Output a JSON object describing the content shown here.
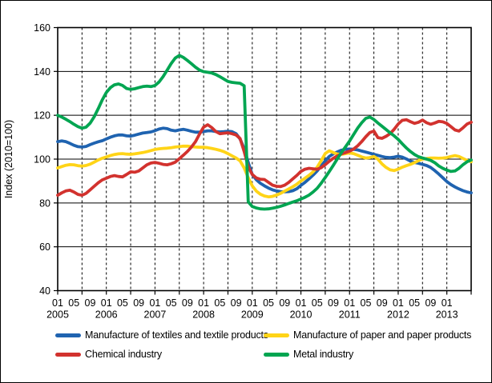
{
  "chart_data": {
    "type": "line",
    "title": "",
    "ylabel": "Index (2010=100)",
    "ylim": [
      40,
      160
    ],
    "yticks": [
      40,
      60,
      80,
      100,
      120,
      140,
      160
    ],
    "x_start": "2005-01",
    "x_end": "2013-07",
    "x_month_tick_labels": [
      "01",
      "05",
      "09"
    ],
    "x_years": [
      "2005",
      "2006",
      "2007",
      "2008",
      "2009",
      "2010",
      "2011",
      "2012",
      "2013"
    ],
    "grid": {
      "horizontal": "solid",
      "vertical": "dashed every 6 months"
    },
    "legend_position": "bottom",
    "axis_color": "#000000",
    "background_color": "#ffffff",
    "series": [
      {
        "name": "Manufacture of textiles and textile products",
        "color": "#1F63B0",
        "values": [
          108.0,
          108.3,
          108.0,
          107.2,
          106.3,
          105.7,
          105.5,
          105.8,
          106.6,
          107.3,
          107.9,
          108.4,
          109.2,
          110.0,
          110.6,
          111.0,
          111.0,
          110.6,
          110.5,
          110.9,
          111.4,
          111.9,
          112.1,
          112.4,
          113.0,
          113.7,
          114.1,
          113.9,
          113.2,
          112.9,
          113.3,
          113.6,
          113.2,
          112.7,
          112.3,
          112.3,
          112.6,
          112.9,
          112.9,
          112.6,
          112.4,
          112.5,
          112.7,
          112.5,
          111.6,
          109.2,
          104.8,
          98.5,
          93.0,
          90.6,
          89.0,
          87.8,
          86.8,
          86.0,
          85.5,
          85.2,
          85.1,
          85.2,
          85.6,
          86.5,
          88.0,
          89.4,
          91.0,
          92.7,
          94.6,
          96.9,
          99.2,
          101.2,
          102.4,
          103.3,
          104.1,
          104.5,
          104.6,
          104.5,
          104.2,
          103.7,
          103.2,
          102.7,
          102.2,
          101.7,
          101.2,
          100.8,
          100.7,
          100.9,
          101.3,
          100.9,
          100.1,
          99.1,
          98.5,
          98.1,
          97.6,
          97.1,
          96.2,
          94.8,
          93.2,
          91.5,
          89.8,
          88.4,
          87.3,
          86.4,
          85.6,
          85.0,
          84.6
        ]
      },
      {
        "name": "Manufacture of paper and paper products",
        "color": "#FFD417",
        "values": [
          96.0,
          96.6,
          97.2,
          97.5,
          97.4,
          97.0,
          96.8,
          97.1,
          97.7,
          98.6,
          99.6,
          100.4,
          101.0,
          101.6,
          102.1,
          102.4,
          102.5,
          102.3,
          102.2,
          102.4,
          102.7,
          103.0,
          103.4,
          103.9,
          104.4,
          104.7,
          104.9,
          105.0,
          105.2,
          105.5,
          105.7,
          105.9,
          105.9,
          105.7,
          105.5,
          105.4,
          105.4,
          105.2,
          104.9,
          104.5,
          104.0,
          103.4,
          102.5,
          101.5,
          100.5,
          99.2,
          96.0,
          91.5,
          87.8,
          85.4,
          84.0,
          83.2,
          82.8,
          83.0,
          83.6,
          84.4,
          85.4,
          86.4,
          87.4,
          88.6,
          90.0,
          91.3,
          92.6,
          94.2,
          96.3,
          99.3,
          102.6,
          103.8,
          103.0,
          102.3,
          102.2,
          102.5,
          102.8,
          102.5,
          101.8,
          101.0,
          100.5,
          100.7,
          101.2,
          100.0,
          97.8,
          96.2,
          95.1,
          94.8,
          95.4,
          96.3,
          97.0,
          97.6,
          98.4,
          99.3,
          100.0,
          100.3,
          100.5,
          100.5,
          100.4,
          100.5,
          100.7,
          101.2,
          101.6,
          101.2,
          100.3,
          99.4,
          98.8
        ]
      },
      {
        "name": "Chemical industry",
        "color": "#D2322E",
        "values": [
          83.5,
          84.6,
          85.5,
          85.8,
          85.0,
          83.9,
          83.5,
          84.4,
          86.0,
          87.6,
          89.2,
          90.5,
          91.3,
          92.1,
          92.5,
          92.1,
          91.9,
          93.0,
          94.2,
          94.0,
          94.6,
          96.0,
          97.4,
          98.2,
          98.5,
          98.1,
          97.6,
          97.4,
          97.9,
          98.6,
          100.2,
          101.8,
          103.5,
          105.5,
          108.0,
          111.5,
          114.6,
          115.7,
          114.4,
          112.6,
          111.6,
          111.8,
          112.0,
          111.6,
          111.0,
          109.4,
          103.5,
          96.5,
          93.0,
          91.4,
          90.8,
          90.7,
          89.4,
          88.1,
          87.6,
          87.5,
          88.1,
          89.4,
          91.0,
          92.6,
          94.4,
          95.4,
          95.8,
          95.6,
          95.4,
          96.1,
          97.5,
          99.0,
          100.4,
          101.5,
          102.4,
          103.0,
          103.6,
          104.6,
          106.1,
          108.0,
          110.2,
          112.1,
          112.8,
          109.8,
          109.5,
          110.4,
          111.6,
          113.6,
          116.0,
          117.7,
          118.0,
          117.1,
          116.3,
          116.8,
          117.8,
          116.6,
          115.9,
          116.5,
          117.2,
          117.0,
          116.3,
          114.8,
          113.3,
          112.8,
          114.3,
          116.0,
          116.8
        ]
      },
      {
        "name": "Metal industry",
        "color": "#00A551",
        "values": [
          120.0,
          119.2,
          118.2,
          117.1,
          115.9,
          114.8,
          114.1,
          114.6,
          116.4,
          119.3,
          123.0,
          127.0,
          130.4,
          132.6,
          133.9,
          134.3,
          133.6,
          132.2,
          131.8,
          132.1,
          132.6,
          133.1,
          133.3,
          133.1,
          133.6,
          135.2,
          137.6,
          140.6,
          143.6,
          146.1,
          147.3,
          146.4,
          145.0,
          143.5,
          141.9,
          140.6,
          139.9,
          139.6,
          139.3,
          138.6,
          137.6,
          136.5,
          135.4,
          135.0,
          134.8,
          134.6,
          133.5,
          80.5,
          78.4,
          77.7,
          77.3,
          77.2,
          77.3,
          77.6,
          78.0,
          78.5,
          79.1,
          79.8,
          80.4,
          81.0,
          81.8,
          82.6,
          83.6,
          85.0,
          86.7,
          89.0,
          91.6,
          94.3,
          97.2,
          100.2,
          103.0,
          105.6,
          108.2,
          111.2,
          114.2,
          116.6,
          118.6,
          119.2,
          118.1,
          116.5,
          115.0,
          113.5,
          112.0,
          110.6,
          109.0,
          107.0,
          105.1,
          103.5,
          102.1,
          101.1,
          100.5,
          100.0,
          99.4,
          98.4,
          96.9,
          95.8,
          95.0,
          94.4,
          94.6,
          95.8,
          97.5,
          98.8,
          99.6
        ]
      }
    ]
  },
  "legend": {
    "items": [
      "Manufacture of textiles and textile products",
      "Manufacture of paper and paper products",
      "Chemical industry",
      "Metal industry"
    ]
  }
}
